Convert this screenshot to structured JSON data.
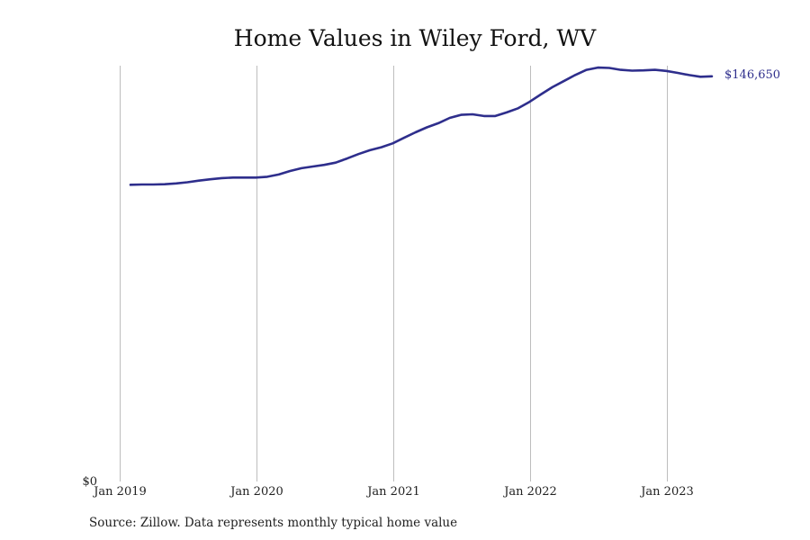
{
  "chart_data": {
    "type": "line",
    "title": "Home Values in Wiley Ford, WV",
    "xlabel": "",
    "ylabel": "",
    "x_tick_labels": [
      "Jan 2019",
      "Jan 2020",
      "Jan 2021",
      "Jan 2022",
      "Jan 2023"
    ],
    "y_tick_labels": [
      "$0"
    ],
    "ylim": [
      0,
      150500
    ],
    "grid": "vertical",
    "line_color": "#2e2e8c",
    "end_label": "$146,650",
    "x": [
      "2019-01",
      "2019-02",
      "2019-03",
      "2019-04",
      "2019-05",
      "2019-06",
      "2019-07",
      "2019-08",
      "2019-09",
      "2019-10",
      "2019-11",
      "2019-12",
      "2020-01",
      "2020-02",
      "2020-03",
      "2020-04",
      "2020-05",
      "2020-06",
      "2020-07",
      "2020-08",
      "2020-09",
      "2020-10",
      "2020-11",
      "2020-12",
      "2021-01",
      "2021-02",
      "2021-03",
      "2021-04",
      "2021-05",
      "2021-06",
      "2021-07",
      "2021-08",
      "2021-09",
      "2021-10",
      "2021-11",
      "2021-12",
      "2022-01",
      "2022-02",
      "2022-03",
      "2022-04",
      "2022-05",
      "2022-06",
      "2022-07",
      "2022-08",
      "2022-09",
      "2022-10",
      "2022-11",
      "2022-12",
      "2023-01",
      "2023-02",
      "2023-03",
      "2023-04"
    ],
    "values": [
      107400,
      107500,
      107500,
      107600,
      107900,
      108300,
      108900,
      109400,
      109800,
      110000,
      110000,
      110000,
      110300,
      111100,
      112400,
      113400,
      114000,
      114600,
      115400,
      116900,
      118500,
      119900,
      121000,
      122400,
      124400,
      126400,
      128200,
      129700,
      131600,
      132700,
      132900,
      132300,
      132300,
      133600,
      135100,
      137400,
      140100,
      142700,
      144900,
      147100,
      149000,
      149800,
      149700,
      149000,
      148700,
      148800,
      149000,
      148600,
      147900,
      147100,
      146500,
      146650
    ]
  },
  "source": "Source: Zillow. Data represents monthly typical home value"
}
